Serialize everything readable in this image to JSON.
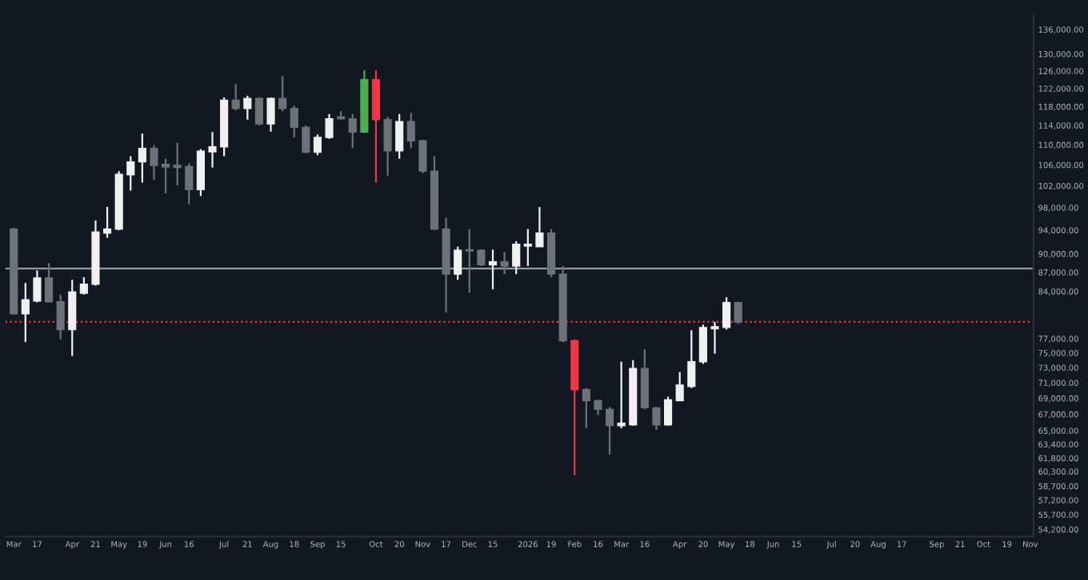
{
  "chart_data": {
    "type": "candlestick",
    "x": [
      "2025-03-03",
      "2025-03-10",
      "2025-03-17",
      "2025-03-24",
      "2025-03-31",
      "2025-04-07",
      "2025-04-14",
      "2025-04-21",
      "2025-04-28",
      "2025-05-05",
      "2025-05-12",
      "2025-05-19",
      "2025-05-26",
      "2025-06-02",
      "2025-06-09",
      "2025-06-16",
      "2025-06-23",
      "2025-06-30",
      "2025-07-07",
      "2025-07-14",
      "2025-07-21",
      "2025-07-28",
      "2025-08-04",
      "2025-08-11",
      "2025-08-18",
      "2025-08-25",
      "2025-09-01",
      "2025-09-08",
      "2025-09-15",
      "2025-09-22",
      "2025-09-29",
      "2025-10-06",
      "2025-10-13",
      "2025-10-20",
      "2025-10-27",
      "2025-11-03",
      "2025-11-10",
      "2025-11-17",
      "2025-11-24",
      "2025-12-01",
      "2025-12-08",
      "2025-12-15",
      "2025-12-22",
      "2025-12-29",
      "2026-01-05",
      "2026-01-12",
      "2026-01-19",
      "2026-01-26",
      "2026-02-02",
      "2026-02-09",
      "2026-02-16",
      "2026-02-23",
      "2026-03-02",
      "2026-03-09",
      "2026-03-16",
      "2026-03-23",
      "2026-03-30",
      "2026-04-06",
      "2026-04-13",
      "2026-04-20",
      "2026-04-27",
      "2026-05-04",
      "2026-05-11"
    ],
    "ohlc": [
      [
        94200,
        94400,
        80500,
        80600
      ],
      [
        80600,
        85300,
        76500,
        82700
      ],
      [
        82500,
        87300,
        82300,
        86100
      ],
      [
        86100,
        88500,
        82300,
        82400
      ],
      [
        82400,
        83500,
        76900,
        78300
      ],
      [
        78300,
        85800,
        74600,
        83900
      ],
      [
        83700,
        86200,
        83500,
        85100
      ],
      [
        85100,
        95700,
        84900,
        93700
      ],
      [
        93500,
        98100,
        92700,
        94200
      ],
      [
        94200,
        104800,
        94000,
        104200
      ],
      [
        104100,
        107700,
        101100,
        106600
      ],
      [
        106600,
        112300,
        102600,
        109300
      ],
      [
        109300,
        109900,
        103100,
        105900
      ],
      [
        106100,
        107200,
        100600,
        105600
      ],
      [
        105900,
        110400,
        102100,
        105500
      ],
      [
        105700,
        106300,
        98600,
        101300
      ],
      [
        101300,
        109100,
        100100,
        108700
      ],
      [
        108600,
        112600,
        105500,
        109600
      ],
      [
        109600,
        120000,
        107700,
        119400
      ],
      [
        119400,
        123000,
        117200,
        117600
      ],
      [
        117600,
        120400,
        115200,
        119800
      ],
      [
        119800,
        120000,
        114000,
        114300
      ],
      [
        114300,
        120000,
        112700,
        119800
      ],
      [
        119800,
        124800,
        117000,
        117600
      ],
      [
        117600,
        118200,
        111500,
        113600
      ],
      [
        113600,
        114000,
        108300,
        108500
      ],
      [
        108500,
        112100,
        107900,
        111500
      ],
      [
        111500,
        116400,
        111200,
        115400
      ],
      [
        115800,
        117000,
        115200,
        115400
      ],
      [
        115400,
        116400,
        109300,
        112600
      ],
      [
        112600,
        126100,
        112400,
        124000
      ],
      [
        124000,
        126100,
        102600,
        115200
      ],
      [
        115200,
        115800,
        103900,
        108800
      ],
      [
        108800,
        116400,
        107200,
        114800
      ],
      [
        114800,
        116600,
        109300,
        110800
      ],
      [
        110800,
        111000,
        104400,
        104800
      ],
      [
        104800,
        107700,
        94000,
        94200
      ],
      [
        94200,
        96200,
        80800,
        86700
      ],
      [
        86700,
        91200,
        85800,
        90600
      ],
      [
        90700,
        94200,
        83800,
        90500
      ],
      [
        90600,
        90700,
        88000,
        88200
      ],
      [
        88200,
        90700,
        84300,
        88700
      ],
      [
        88700,
        90300,
        86700,
        88000
      ],
      [
        88000,
        92100,
        86700,
        91600
      ],
      [
        91300,
        94200,
        88000,
        91600
      ],
      [
        91200,
        98100,
        91200,
        93500
      ],
      [
        93500,
        94200,
        86200,
        86700
      ],
      [
        86700,
        88000,
        76500,
        76700
      ],
      [
        76700,
        76900,
        59900,
        70100
      ],
      [
        70100,
        70300,
        65300,
        68700
      ],
      [
        68700,
        68800,
        66900,
        67600
      ],
      [
        67600,
        67900,
        62200,
        65600
      ],
      [
        65600,
        73800,
        65300,
        65900
      ],
      [
        65700,
        74000,
        65600,
        72900
      ],
      [
        72900,
        75500,
        67600,
        67800
      ],
      [
        67800,
        67900,
        65100,
        65700
      ],
      [
        65700,
        69200,
        65600,
        68800
      ],
      [
        68700,
        72400,
        68700,
        70700
      ],
      [
        70500,
        78200,
        70300,
        73800
      ],
      [
        73800,
        79000,
        73500,
        78600
      ],
      [
        78400,
        79400,
        74900,
        78700
      ],
      [
        78600,
        83100,
        78300,
        82300
      ],
      [
        82300,
        82400,
        79100,
        79400
      ]
    ],
    "colors": [
      "#6f7179",
      "#f0f0f0",
      "#f0f0f0",
      "#6f7179",
      "#6f7179",
      "#f0f0f0",
      "#f0f0f0",
      "#f0f0f0",
      "#f0f0f0",
      "#f0f0f0",
      "#f0f0f0",
      "#f0f0f0",
      "#6f7179",
      "#6f7179",
      "#6f7179",
      "#6f7179",
      "#f0f0f0",
      "#f0f0f0",
      "#f0f0f0",
      "#6f7179",
      "#f0f0f0",
      "#6f7179",
      "#f0f0f0",
      "#6f7179",
      "#6f7179",
      "#6f7179",
      "#f0f0f0",
      "#f0f0f0",
      "#6f7179",
      "#6f7179",
      "#4caf50",
      "#f23645",
      "#6f7179",
      "#f0f0f0",
      "#6f7179",
      "#6f7179",
      "#6f7179",
      "#6f7179",
      "#f0f0f0",
      "#6f7179",
      "#6f7179",
      "#f0f0f0",
      "#6f7179",
      "#f0f0f0",
      "#f0f0f0",
      "#f0f0f0",
      "#6f7179",
      "#6f7179",
      "#f23645",
      "#6f7179",
      "#6f7179",
      "#6f7179",
      "#f0f0f0",
      "#f0f0f0",
      "#6f7179",
      "#6f7179",
      "#f0f0f0",
      "#f0f0f0",
      "#f0f0f0",
      "#f0f0f0",
      "#f0f0f0",
      "#f0f0f0",
      "#6f7179"
    ],
    "xlim": [
      "2025-02-26",
      "2026-11-04"
    ],
    "xticks": [
      {
        "value": "2025-03-03",
        "label": "Mar"
      },
      {
        "value": "2025-03-17",
        "label": "17"
      },
      {
        "value": "2025-04-07",
        "label": "Apr"
      },
      {
        "value": "2025-04-21",
        "label": "21"
      },
      {
        "value": "2025-05-05",
        "label": "May"
      },
      {
        "value": "2025-05-19",
        "label": "19"
      },
      {
        "value": "2025-06-02",
        "label": "Jun"
      },
      {
        "value": "2025-06-16",
        "label": "16"
      },
      {
        "value": "2025-07-07",
        "label": "Jul"
      },
      {
        "value": "2025-07-21",
        "label": "21"
      },
      {
        "value": "2025-08-04",
        "label": "Aug"
      },
      {
        "value": "2025-08-18",
        "label": "18"
      },
      {
        "value": "2025-09-01",
        "label": "Sep"
      },
      {
        "value": "2025-09-15",
        "label": "15"
      },
      {
        "value": "2025-10-06",
        "label": "Oct"
      },
      {
        "value": "2025-10-20",
        "label": "20"
      },
      {
        "value": "2025-11-03",
        "label": "Nov"
      },
      {
        "value": "2025-11-17",
        "label": "17"
      },
      {
        "value": "2025-12-01",
        "label": "Dec"
      },
      {
        "value": "2025-12-15",
        "label": "15"
      },
      {
        "value": "2026-01-05",
        "label": "2026"
      },
      {
        "value": "2026-01-19",
        "label": "19"
      },
      {
        "value": "2026-02-02",
        "label": "Feb"
      },
      {
        "value": "2026-02-16",
        "label": "16"
      },
      {
        "value": "2026-03-02",
        "label": "Mar"
      },
      {
        "value": "2026-03-16",
        "label": "16"
      },
      {
        "value": "2026-04-06",
        "label": "Apr"
      },
      {
        "value": "2026-04-20",
        "label": "20"
      },
      {
        "value": "2026-05-04",
        "label": "May"
      },
      {
        "value": "2026-05-18",
        "label": "18"
      },
      {
        "value": "2026-06-01",
        "label": "Jun"
      },
      {
        "value": "2026-06-15",
        "label": "15"
      },
      {
        "value": "2026-07-06",
        "label": "Jul"
      },
      {
        "value": "2026-07-20",
        "label": "20"
      },
      {
        "value": "2026-08-03",
        "label": "Aug"
      },
      {
        "value": "2026-08-17",
        "label": "17"
      },
      {
        "value": "2026-09-07",
        "label": "Sep"
      },
      {
        "value": "2026-09-21",
        "label": "21"
      },
      {
        "value": "2026-10-05",
        "label": "Oct"
      },
      {
        "value": "2026-10-19",
        "label": "19"
      },
      {
        "value": "2026-11-02",
        "label": "Nov"
      }
    ],
    "log": "y",
    "ylim": [
      53500,
      139800
    ],
    "yticks": [
      {
        "value": 136000,
        "label": "136,000.00"
      },
      {
        "value": 130000,
        "label": "130,000.00"
      },
      {
        "value": 126000,
        "label": "126,000.00"
      },
      {
        "value": 122000,
        "label": "122,000.00"
      },
      {
        "value": 118000,
        "label": "118,000.00"
      },
      {
        "value": 114000,
        "label": "114,000.00"
      },
      {
        "value": 110000,
        "label": "110,000.00"
      },
      {
        "value": 106000,
        "label": "106,000.00"
      },
      {
        "value": 102000,
        "label": "102,000.00"
      },
      {
        "value": 98000,
        "label": "98,000.00"
      },
      {
        "value": 94000,
        "label": "94,000.00"
      },
      {
        "value": 90000,
        "label": "90,000.00"
      },
      {
        "value": 87000,
        "label": "87,000.00"
      },
      {
        "value": 84000,
        "label": "84,000.00"
      },
      {
        "value": 77000,
        "label": "77,000.00"
      },
      {
        "value": 75000,
        "label": "75,000.00"
      },
      {
        "value": 73000,
        "label": "73,000.00"
      },
      {
        "value": 71000,
        "label": "71,000.00"
      },
      {
        "value": 69000,
        "label": "69,000.00"
      },
      {
        "value": 67000,
        "label": "67,000.00"
      },
      {
        "value": 65000,
        "label": "65,000.00"
      },
      {
        "value": 63400,
        "label": "63,400.00"
      },
      {
        "value": 61800,
        "label": "61,800.00"
      },
      {
        "value": 60300,
        "label": "60,300.00"
      },
      {
        "value": 58700,
        "label": "58,700.00"
      },
      {
        "value": 57200,
        "label": "57,200.00"
      },
      {
        "value": 55700,
        "label": "55,700.00"
      },
      {
        "value": 54200,
        "label": "54,200.00"
      }
    ],
    "ref_lines": [
      {
        "axis": "y",
        "value": 87600,
        "color": "#9598a1",
        "line_style": "solid"
      },
      {
        "axis": "y",
        "value": 79400,
        "color": "#f23645",
        "line_style": "dotted"
      }
    ]
  }
}
